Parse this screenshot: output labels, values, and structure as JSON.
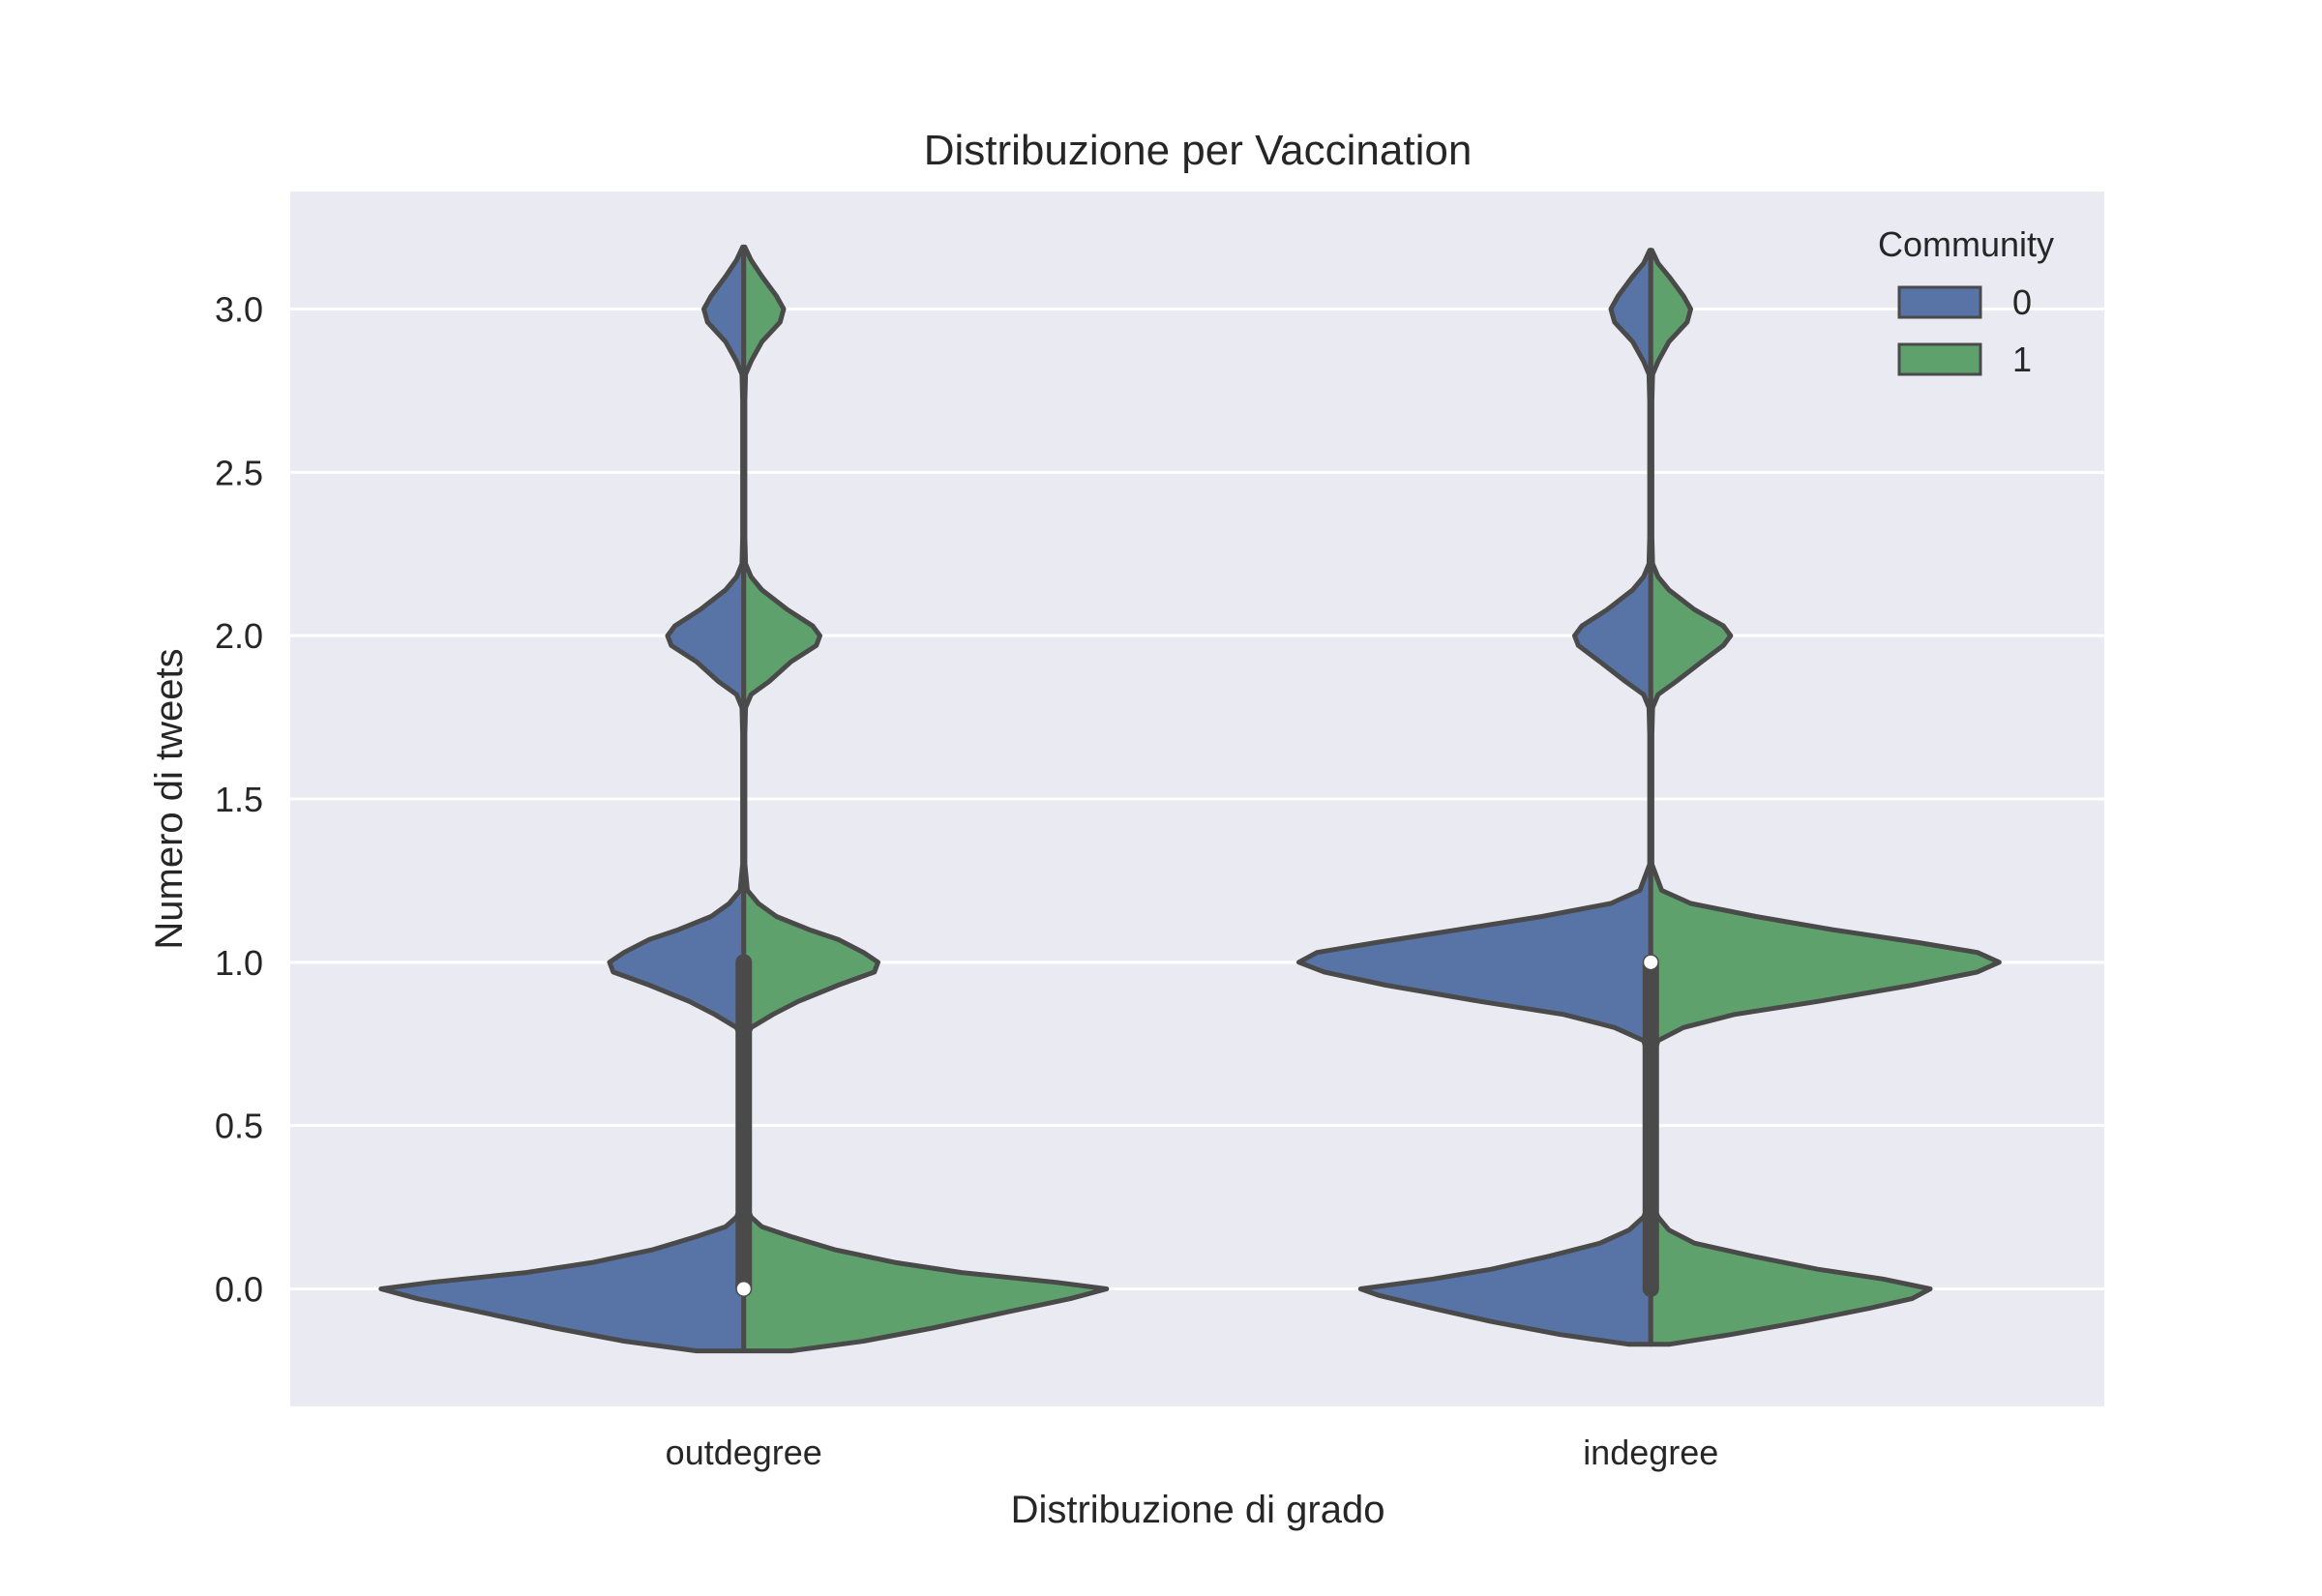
{
  "chart_data": {
    "type": "violin",
    "title": "Distribuzione per Vaccination",
    "xlabel": "Distribuzione di grado",
    "ylabel": "Numero di tweets",
    "categories": [
      "outdegree",
      "indegree"
    ],
    "ylim": [
      -0.36,
      3.36
    ],
    "yticks": [
      "0.0",
      "0.5",
      "1.0",
      "1.5",
      "2.0",
      "2.5",
      "3.0"
    ],
    "grid": true,
    "legend": {
      "title": "Community",
      "placement": "top-right",
      "entries": [
        "0",
        "1"
      ]
    },
    "series": [
      {
        "name": "0",
        "color": "#5874a7"
      },
      {
        "name": "1",
        "color": "#5fa16d"
      }
    ],
    "violins": [
      {
        "category": "outdegree",
        "median": 0,
        "iqr": [
          0,
          1
        ],
        "halves": [
          {
            "community": "0",
            "profile": [
              [
                -0.19,
                0.13
              ],
              [
                -0.16,
                0.33
              ],
              [
                -0.12,
                0.52
              ],
              [
                -0.07,
                0.73
              ],
              [
                -0.03,
                0.9
              ],
              [
                0,
                1.0
              ],
              [
                0.02,
                0.86
              ],
              [
                0.05,
                0.6
              ],
              [
                0.08,
                0.42
              ],
              [
                0.12,
                0.25
              ],
              [
                0.16,
                0.13
              ],
              [
                0.19,
                0.05
              ],
              [
                0.22,
                0.02
              ],
              [
                0.26,
                0.005
              ],
              [
                0.35,
                0.003
              ],
              [
                0.7,
                0.003
              ],
              [
                0.76,
                0.005
              ],
              [
                0.8,
                0.02
              ],
              [
                0.84,
                0.08
              ],
              [
                0.88,
                0.15
              ],
              [
                0.93,
                0.26
              ],
              [
                0.97,
                0.36
              ],
              [
                1.0,
                0.37
              ],
              [
                1.03,
                0.33
              ],
              [
                1.07,
                0.26
              ],
              [
                1.1,
                0.18
              ],
              [
                1.14,
                0.09
              ],
              [
                1.18,
                0.04
              ],
              [
                1.22,
                0.01
              ],
              [
                1.3,
                0.003
              ],
              [
                1.7,
                0.003
              ],
              [
                1.78,
                0.005
              ],
              [
                1.82,
                0.02
              ],
              [
                1.86,
                0.07
              ],
              [
                1.92,
                0.13
              ],
              [
                1.97,
                0.2
              ],
              [
                2.0,
                0.21
              ],
              [
                2.03,
                0.19
              ],
              [
                2.08,
                0.12
              ],
              [
                2.14,
                0.05
              ],
              [
                2.18,
                0.02
              ],
              [
                2.22,
                0.005
              ],
              [
                2.3,
                0.003
              ],
              [
                2.72,
                0.003
              ],
              [
                2.8,
                0.005
              ],
              [
                2.84,
                0.02
              ],
              [
                2.9,
                0.05
              ],
              [
                2.96,
                0.1
              ],
              [
                3.0,
                0.11
              ],
              [
                3.04,
                0.09
              ],
              [
                3.1,
                0.05
              ],
              [
                3.15,
                0.02
              ],
              [
                3.19,
                0.003
              ]
            ]
          },
          {
            "community": "1",
            "profile": [
              [
                -0.19,
                0.13
              ],
              [
                -0.16,
                0.33
              ],
              [
                -0.12,
                0.52
              ],
              [
                -0.07,
                0.73
              ],
              [
                -0.03,
                0.9
              ],
              [
                0,
                1.0
              ],
              [
                0.02,
                0.86
              ],
              [
                0.05,
                0.6
              ],
              [
                0.08,
                0.42
              ],
              [
                0.12,
                0.25
              ],
              [
                0.16,
                0.13
              ],
              [
                0.19,
                0.05
              ],
              [
                0.22,
                0.02
              ],
              [
                0.26,
                0.005
              ],
              [
                0.35,
                0.003
              ],
              [
                0.7,
                0.003
              ],
              [
                0.76,
                0.005
              ],
              [
                0.8,
                0.02
              ],
              [
                0.84,
                0.08
              ],
              [
                0.88,
                0.15
              ],
              [
                0.93,
                0.26
              ],
              [
                0.97,
                0.36
              ],
              [
                1.0,
                0.37
              ],
              [
                1.03,
                0.33
              ],
              [
                1.07,
                0.26
              ],
              [
                1.1,
                0.18
              ],
              [
                1.14,
                0.09
              ],
              [
                1.18,
                0.04
              ],
              [
                1.22,
                0.01
              ],
              [
                1.3,
                0.003
              ],
              [
                1.7,
                0.003
              ],
              [
                1.78,
                0.005
              ],
              [
                1.82,
                0.02
              ],
              [
                1.86,
                0.07
              ],
              [
                1.92,
                0.13
              ],
              [
                1.97,
                0.2
              ],
              [
                2.0,
                0.21
              ],
              [
                2.03,
                0.19
              ],
              [
                2.08,
                0.12
              ],
              [
                2.14,
                0.05
              ],
              [
                2.18,
                0.02
              ],
              [
                2.22,
                0.005
              ],
              [
                2.3,
                0.003
              ],
              [
                2.72,
                0.003
              ],
              [
                2.8,
                0.005
              ],
              [
                2.84,
                0.02
              ],
              [
                2.9,
                0.05
              ],
              [
                2.96,
                0.1
              ],
              [
                3.0,
                0.11
              ],
              [
                3.04,
                0.09
              ],
              [
                3.1,
                0.05
              ],
              [
                3.15,
                0.02
              ],
              [
                3.19,
                0.003
              ]
            ]
          }
        ]
      },
      {
        "category": "indegree",
        "median": 1,
        "iqr": [
          0,
          1
        ],
        "halves": [
          {
            "community": "0",
            "profile": [
              [
                -0.17,
                0.06
              ],
              [
                -0.14,
                0.25
              ],
              [
                -0.1,
                0.44
              ],
              [
                -0.06,
                0.6
              ],
              [
                -0.02,
                0.75
              ],
              [
                0,
                0.8
              ],
              [
                0.03,
                0.6
              ],
              [
                0.06,
                0.44
              ],
              [
                0.1,
                0.28
              ],
              [
                0.14,
                0.14
              ],
              [
                0.18,
                0.06
              ],
              [
                0.22,
                0.02
              ],
              [
                0.26,
                0.005
              ],
              [
                0.35,
                0.003
              ],
              [
                0.7,
                0.003
              ],
              [
                0.76,
                0.02
              ],
              [
                0.8,
                0.1
              ],
              [
                0.84,
                0.24
              ],
              [
                0.88,
                0.47
              ],
              [
                0.93,
                0.73
              ],
              [
                0.97,
                0.9
              ],
              [
                1.0,
                0.97
              ],
              [
                1.03,
                0.92
              ],
              [
                1.06,
                0.76
              ],
              [
                1.1,
                0.53
              ],
              [
                1.14,
                0.3
              ],
              [
                1.18,
                0.11
              ],
              [
                1.22,
                0.03
              ],
              [
                1.3,
                0.003
              ],
              [
                1.7,
                0.003
              ],
              [
                1.78,
                0.005
              ],
              [
                1.82,
                0.02
              ],
              [
                1.86,
                0.07
              ],
              [
                1.92,
                0.14
              ],
              [
                1.97,
                0.2
              ],
              [
                2.0,
                0.21
              ],
              [
                2.03,
                0.19
              ],
              [
                2.08,
                0.12
              ],
              [
                2.14,
                0.05
              ],
              [
                2.18,
                0.02
              ],
              [
                2.22,
                0.005
              ],
              [
                2.3,
                0.003
              ],
              [
                2.72,
                0.003
              ],
              [
                2.8,
                0.005
              ],
              [
                2.84,
                0.02
              ],
              [
                2.9,
                0.05
              ],
              [
                2.96,
                0.1
              ],
              [
                3.0,
                0.11
              ],
              [
                3.04,
                0.09
              ],
              [
                3.1,
                0.05
              ],
              [
                3.14,
                0.02
              ],
              [
                3.18,
                0.003
              ]
            ]
          },
          {
            "community": "1",
            "profile": [
              [
                -0.17,
                0.05
              ],
              [
                -0.14,
                0.22
              ],
              [
                -0.1,
                0.42
              ],
              [
                -0.06,
                0.6
              ],
              [
                -0.03,
                0.72
              ],
              [
                0,
                0.77
              ],
              [
                0.03,
                0.64
              ],
              [
                0.06,
                0.46
              ],
              [
                0.1,
                0.28
              ],
              [
                0.14,
                0.12
              ],
              [
                0.18,
                0.05
              ],
              [
                0.22,
                0.02
              ],
              [
                0.26,
                0.005
              ],
              [
                0.35,
                0.003
              ],
              [
                0.7,
                0.003
              ],
              [
                0.76,
                0.02
              ],
              [
                0.8,
                0.09
              ],
              [
                0.84,
                0.23
              ],
              [
                0.88,
                0.46
              ],
              [
                0.93,
                0.72
              ],
              [
                0.97,
                0.9
              ],
              [
                1.0,
                0.96
              ],
              [
                1.03,
                0.9
              ],
              [
                1.06,
                0.74
              ],
              [
                1.1,
                0.5
              ],
              [
                1.14,
                0.29
              ],
              [
                1.18,
                0.11
              ],
              [
                1.22,
                0.03
              ],
              [
                1.3,
                0.003
              ],
              [
                1.7,
                0.003
              ],
              [
                1.78,
                0.005
              ],
              [
                1.82,
                0.02
              ],
              [
                1.86,
                0.07
              ],
              [
                1.92,
                0.14
              ],
              [
                1.97,
                0.2
              ],
              [
                2.0,
                0.22
              ],
              [
                2.03,
                0.2
              ],
              [
                2.08,
                0.12
              ],
              [
                2.14,
                0.05
              ],
              [
                2.18,
                0.02
              ],
              [
                2.22,
                0.005
              ],
              [
                2.3,
                0.003
              ],
              [
                2.72,
                0.003
              ],
              [
                2.8,
                0.005
              ],
              [
                2.84,
                0.02
              ],
              [
                2.9,
                0.05
              ],
              [
                2.96,
                0.1
              ],
              [
                3.0,
                0.11
              ],
              [
                3.04,
                0.09
              ],
              [
                3.1,
                0.05
              ],
              [
                3.14,
                0.02
              ],
              [
                3.18,
                0.003
              ]
            ]
          }
        ]
      }
    ]
  }
}
